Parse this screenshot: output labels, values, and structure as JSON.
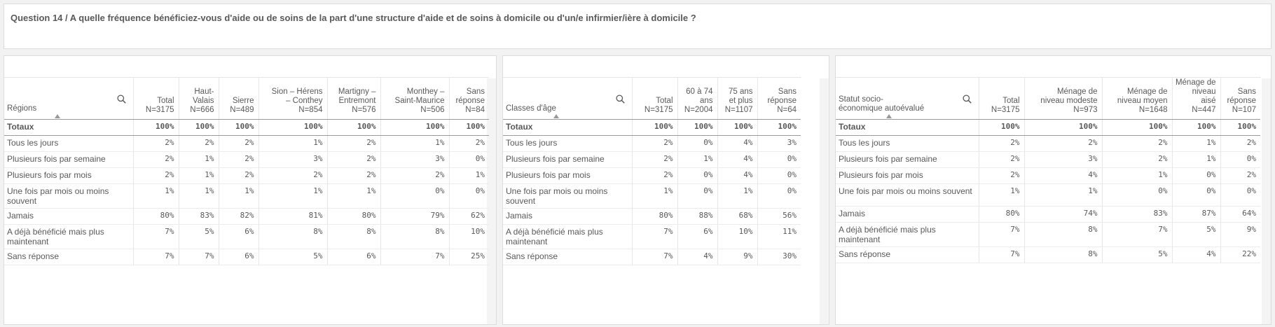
{
  "header": {
    "title": "Question 14 / A quelle fréquence bénéficiez-vous d'aide ou de soins de la part d'une structure d'aide et de soins à domicile ou d'un/e infirmier/ière à domicile ?"
  },
  "tables": [
    {
      "dimension": "Régions",
      "columns": [
        "Total\nN=3175",
        "Haut-\nValais\nN=666",
        "Sierre\nN=489",
        "Sion – Hérens\n– Conthey\nN=854",
        "Martigny –\nEntremont\nN=576",
        "Monthey –\nSaint-Maurice\nN=506",
        "Sans\nréponse\nN=84"
      ],
      "totals_label": "Totaux",
      "totals": [
        "100%",
        "100%",
        "100%",
        "100%",
        "100%",
        "100%",
        "100%"
      ],
      "rows": [
        {
          "label": "Tous les jours",
          "values": [
            "2%",
            "2%",
            "2%",
            "1%",
            "2%",
            "1%",
            "2%"
          ]
        },
        {
          "label": "Plusieurs fois par semaine",
          "values": [
            "2%",
            "1%",
            "2%",
            "3%",
            "2%",
            "3%",
            "0%"
          ]
        },
        {
          "label": "Plusieurs fois par mois",
          "values": [
            "2%",
            "1%",
            "2%",
            "2%",
            "2%",
            "2%",
            "1%"
          ]
        },
        {
          "label": "Une fois par mois ou moins souvent",
          "values": [
            "1%",
            "1%",
            "1%",
            "1%",
            "1%",
            "0%",
            "0%"
          ]
        },
        {
          "label": "Jamais",
          "values": [
            "80%",
            "83%",
            "82%",
            "81%",
            "80%",
            "79%",
            "62%"
          ]
        },
        {
          "label": "A déjà bénéficié mais plus maintenant",
          "values": [
            "7%",
            "5%",
            "6%",
            "8%",
            "8%",
            "8%",
            "10%"
          ]
        },
        {
          "label": "Sans réponse",
          "values": [
            "7%",
            "7%",
            "6%",
            "5%",
            "6%",
            "7%",
            "25%"
          ]
        }
      ]
    },
    {
      "dimension": "Classes d'âge",
      "columns": [
        "Total\nN=3175",
        "60 à 74\nans\nN=2004",
        "75 ans\net plus\nN=1107",
        "Sans\nréponse\nN=64"
      ],
      "totals_label": "Totaux",
      "totals": [
        "100%",
        "100%",
        "100%",
        "100%"
      ],
      "rows": [
        {
          "label": "Tous les jours",
          "values": [
            "2%",
            "0%",
            "4%",
            "3%"
          ]
        },
        {
          "label": "Plusieurs fois par semaine",
          "values": [
            "2%",
            "1%",
            "4%",
            "0%"
          ]
        },
        {
          "label": "Plusieurs fois par mois",
          "values": [
            "2%",
            "0%",
            "4%",
            "0%"
          ]
        },
        {
          "label": "Une fois par mois ou moins souvent",
          "values": [
            "1%",
            "0%",
            "1%",
            "0%"
          ]
        },
        {
          "label": "Jamais",
          "values": [
            "80%",
            "88%",
            "68%",
            "56%"
          ]
        },
        {
          "label": "A déjà bénéficié mais plus maintenant",
          "values": [
            "7%",
            "6%",
            "10%",
            "11%"
          ]
        },
        {
          "label": "Sans réponse",
          "values": [
            "7%",
            "4%",
            "9%",
            "30%"
          ]
        }
      ]
    },
    {
      "dimension": "Statut socio-\néconomique autoévalué",
      "columns": [
        "Total\nN=3175",
        "Ménage de\nniveau modeste\nN=973",
        "Ménage de\nniveau moyen\nN=1648",
        "Ménage de\nniveau aisé\nN=447",
        "Sans\nréponse\nN=107"
      ],
      "totals_label": "Totaux",
      "totals": [
        "100%",
        "100%",
        "100%",
        "100%",
        "100%"
      ],
      "rows": [
        {
          "label": "Tous les jours",
          "values": [
            "2%",
            "2%",
            "2%",
            "1%",
            "2%"
          ]
        },
        {
          "label": "Plusieurs fois par semaine",
          "values": [
            "2%",
            "3%",
            "2%",
            "1%",
            "0%"
          ]
        },
        {
          "label": "Plusieurs fois par mois",
          "values": [
            "2%",
            "4%",
            "1%",
            "0%",
            "2%"
          ]
        },
        {
          "label": "Une fois par mois ou moins souvent",
          "values": [
            "1%",
            "1%",
            "0%",
            "0%",
            "0%"
          ]
        },
        {
          "label": "Jamais",
          "values": [
            "80%",
            "74%",
            "83%",
            "87%",
            "64%"
          ]
        },
        {
          "label": "A déjà bénéficié mais plus maintenant",
          "values": [
            "7%",
            "8%",
            "7%",
            "5%",
            "9%"
          ]
        },
        {
          "label": "Sans réponse",
          "values": [
            "7%",
            "8%",
            "5%",
            "4%",
            "22%"
          ]
        }
      ]
    }
  ]
}
